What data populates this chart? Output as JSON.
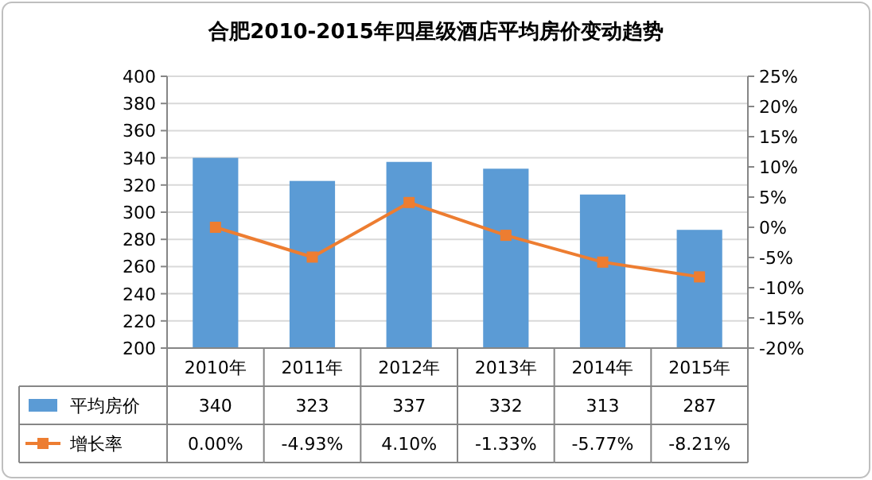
{
  "chart_data": {
    "type": "bar",
    "title": "合肥2010-2015年四星级酒店平均房价变动趋势",
    "categories": [
      "2010年",
      "2011年",
      "2012年",
      "2013年",
      "2014年",
      "2015年"
    ],
    "series": [
      {
        "name": "平均房价",
        "color": "#5b9bd5",
        "values": [
          340,
          323,
          337,
          332,
          313,
          287
        ],
        "value_labels": [
          "340",
          "323",
          "337",
          "332",
          "313",
          "287"
        ]
      },
      {
        "name": "增长率",
        "type": "line",
        "axis": "y2",
        "color": "#ed7d31",
        "marker": "square",
        "values": [
          0,
          -4.93,
          4.1,
          -1.33,
          -5.77,
          -8.21
        ],
        "value_labels": [
          "0.00%",
          "-4.93%",
          "4.10%",
          "-1.33%",
          "-5.77%",
          "-8.21%"
        ]
      }
    ],
    "ylim": [
      200,
      400
    ],
    "yticks": [
      200,
      220,
      240,
      260,
      280,
      300,
      320,
      340,
      360,
      380,
      400
    ],
    "y2lim": [
      -20,
      25
    ],
    "y2ticks": [
      {
        "value": -20,
        "label": "-20%"
      },
      {
        "value": -15,
        "label": "-15%"
      },
      {
        "value": -10,
        "label": "-10%"
      },
      {
        "value": -5,
        "label": "-5%"
      },
      {
        "value": 0,
        "label": "0%"
      },
      {
        "value": 5,
        "label": "5%"
      },
      {
        "value": 10,
        "label": "10%"
      },
      {
        "value": 15,
        "label": "15%"
      },
      {
        "value": 20,
        "label": "20%"
      },
      {
        "value": 25,
        "label": "25%"
      }
    ],
    "grid": "y",
    "legend": "bottom"
  }
}
